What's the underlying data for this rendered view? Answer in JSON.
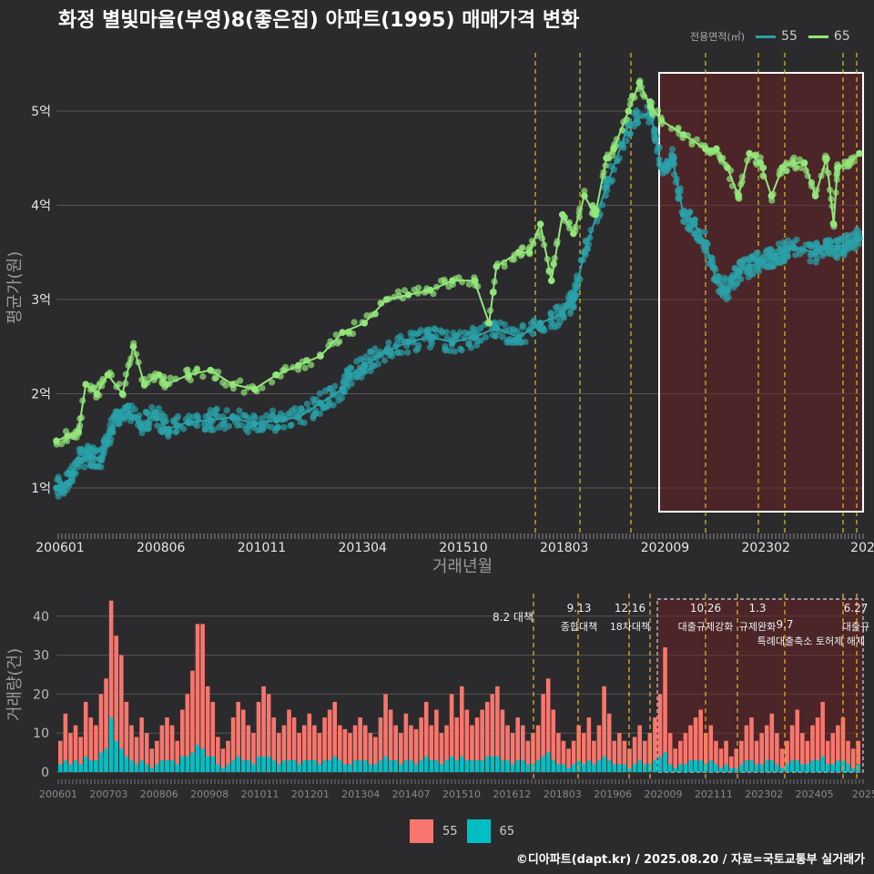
{
  "title": "화정 별빛마을(부영)8(좋은집) 아파트(1995) 매매가격 변화",
  "footer": "©디아파트(dapt.kr) / 2025.08.20 / 자료=국토교통부 실거래가",
  "colors": {
    "s55": "#2aa1a8",
    "s65": "#93e67a",
    "bar55": "#f8766d",
    "bar65": "#00bfc4",
    "policy": "#e0c020"
  },
  "chart_data": [
    {
      "type": "line",
      "title": "화정 별빛마을(부영)8(좋은집) 아파트(1995) 매매가격 변화",
      "xlabel": "거래년월",
      "ylabel": "평균가(원)",
      "legend_title": "전용면적(㎡)",
      "x_ticks": [
        "200601",
        "200806",
        "201011",
        "201304",
        "201510",
        "201803",
        "202009",
        "202302",
        "2025"
      ],
      "y_ticks": [
        "1억",
        "2억",
        "3억",
        "4억",
        "5억"
      ],
      "ylim": [
        0.6,
        5.6
      ],
      "x_unit": "months since 200601",
      "series": [
        {
          "name": "55",
          "x": [
            0,
            6,
            12,
            18,
            24,
            28,
            32,
            38,
            46,
            54,
            60,
            72,
            84,
            96,
            108,
            120,
            132,
            144,
            156,
            160,
            168,
            180,
            192,
            204,
            216,
            228,
            240,
            252,
            264,
            276,
            282,
            288,
            300,
            312,
            324,
            330,
            336,
            342,
            348,
            354,
            360,
            366,
            372,
            378,
            384,
            390,
            396,
            402,
            414,
            420,
            426,
            432,
            438
          ],
          "y": [
            1.0,
            1.05,
            1.3,
            1.35,
            1.3,
            1.5,
            1.75,
            1.85,
            1.65,
            1.8,
            1.62,
            1.7,
            1.72,
            1.75,
            1.68,
            1.72,
            1.75,
            1.9,
            2.05,
            2.2,
            2.3,
            2.45,
            2.55,
            2.6,
            2.55,
            2.6,
            2.7,
            2.6,
            2.75,
            2.85,
            3.0,
            3.5,
            4.2,
            4.85,
            5.0,
            4.4,
            4.5,
            3.9,
            3.8,
            3.6,
            3.2,
            3.1,
            3.3,
            3.35,
            3.4,
            3.45,
            3.5,
            3.55,
            3.5,
            3.6,
            3.55,
            3.6,
            3.65
          ]
        },
        {
          "name": "65",
          "x": [
            0,
            6,
            12,
            16,
            22,
            28,
            36,
            42,
            48,
            56,
            60,
            72,
            84,
            96,
            108,
            120,
            132,
            144,
            156,
            168,
            180,
            192,
            204,
            216,
            228,
            236,
            240,
            252,
            258,
            264,
            270,
            276,
            282,
            288,
            294,
            300,
            304,
            312,
            318,
            324,
            330,
            342,
            354,
            360,
            366,
            372,
            378,
            384,
            390,
            396,
            402,
            408,
            414,
            420,
            424,
            426,
            432,
            438
          ],
          "y": [
            1.5,
            1.55,
            1.6,
            2.1,
            2.0,
            2.2,
            2.0,
            2.5,
            2.1,
            2.2,
            2.1,
            2.2,
            2.25,
            2.1,
            2.05,
            2.2,
            2.3,
            2.4,
            2.65,
            2.75,
            3.0,
            3.05,
            3.1,
            3.2,
            3.2,
            2.75,
            3.35,
            3.5,
            3.5,
            3.8,
            3.2,
            3.9,
            3.7,
            4.1,
            3.9,
            4.5,
            4.6,
            5.0,
            5.3,
            5.05,
            4.9,
            4.75,
            4.6,
            4.6,
            4.4,
            4.1,
            4.55,
            4.45,
            4.1,
            4.4,
            4.45,
            4.45,
            4.1,
            4.5,
            3.8,
            4.4,
            4.45,
            4.55
          ]
        }
      ]
    },
    {
      "type": "bar",
      "title": "",
      "xlabel": "",
      "ylabel": "거래량(건)",
      "x_ticks": [
        "200601",
        "200703",
        "200806",
        "200908",
        "201011",
        "201201",
        "201304",
        "201407",
        "201510",
        "201612",
        "201803",
        "201906",
        "202009",
        "202111",
        "202302",
        "202405",
        "2025"
      ],
      "y_ticks": [
        0,
        10,
        20,
        30,
        40
      ],
      "ylim": [
        0,
        45
      ],
      "legend": [
        "55",
        "65"
      ],
      "series": [
        {
          "name": "55",
          "values": [
            8,
            15,
            10,
            12,
            9,
            18,
            14,
            12,
            20,
            24,
            44,
            35,
            30,
            18,
            12,
            9,
            14,
            10,
            6,
            8,
            12,
            14,
            12,
            8,
            16,
            20,
            26,
            38,
            38,
            22,
            18,
            9,
            6,
            8,
            14,
            18,
            16,
            12,
            10,
            18,
            22,
            20,
            14,
            10,
            12,
            16,
            14,
            10,
            12,
            15,
            12,
            10,
            14,
            16,
            18,
            12,
            11,
            10,
            12,
            14,
            12,
            10,
            9,
            14,
            20,
            16,
            12,
            10,
            15,
            12,
            11,
            14,
            18,
            12,
            16,
            10,
            12,
            20,
            14,
            22,
            16,
            12,
            14,
            16,
            18,
            20,
            22,
            16,
            12,
            10,
            14,
            12,
            8,
            10,
            12,
            20,
            24,
            16,
            10,
            8,
            6,
            8,
            12,
            10,
            14,
            8,
            12,
            22,
            15,
            8,
            10,
            8,
            6,
            9,
            12,
            8,
            10,
            14,
            20,
            32,
            10,
            6,
            8,
            10,
            12,
            14,
            16,
            10,
            12,
            8,
            6,
            8,
            4,
            6,
            8,
            12,
            14,
            8,
            10,
            12,
            15,
            10,
            6,
            8,
            12,
            16,
            10,
            8,
            12,
            14,
            18,
            8,
            10,
            12,
            14,
            8,
            6,
            8
          ]
        },
        {
          "name": "65",
          "values": [
            2,
            3,
            2,
            3,
            2,
            4,
            3,
            3,
            5,
            6,
            14,
            8,
            6,
            4,
            3,
            2,
            3,
            2,
            1,
            2,
            3,
            3,
            3,
            2,
            4,
            4,
            5,
            7,
            6,
            4,
            4,
            2,
            1,
            2,
            3,
            4,
            3,
            3,
            2,
            4,
            4,
            4,
            3,
            2,
            3,
            3,
            3,
            2,
            3,
            3,
            3,
            2,
            3,
            3,
            4,
            3,
            2,
            2,
            3,
            3,
            3,
            2,
            2,
            3,
            4,
            3,
            3,
            2,
            3,
            3,
            2,
            3,
            4,
            3,
            3,
            2,
            3,
            4,
            3,
            4,
            3,
            3,
            3,
            3,
            4,
            4,
            4,
            3,
            3,
            2,
            3,
            3,
            2,
            2,
            3,
            4,
            5,
            3,
            2,
            2,
            1,
            2,
            3,
            2,
            3,
            2,
            3,
            4,
            3,
            2,
            2,
            2,
            1,
            2,
            3,
            2,
            2,
            3,
            4,
            5,
            2,
            1,
            2,
            2,
            3,
            3,
            3,
            2,
            3,
            2,
            1,
            2,
            1,
            1,
            2,
            3,
            3,
            2,
            2,
            3,
            3,
            2,
            1,
            2,
            3,
            3,
            2,
            2,
            3,
            3,
            4,
            2,
            2,
            3,
            3,
            2,
            1,
            2
          ]
        }
      ],
      "policy_events": [
        {
          "label_top": "8.2 대책",
          "label_bottom": ""
        },
        {
          "label_top": "9.13",
          "label_bottom": "종합대책"
        },
        {
          "label_top": "12.16",
          "label_bottom": "18차대책"
        },
        {
          "label_top": "10.26",
          "label_bottom": "대출규제강화"
        },
        {
          "label_top": "1.3",
          "label_bottom": "규제완화"
        },
        {
          "label_top": "9.7",
          "label_bottom": "특례대출축소"
        },
        {
          "label_top": "",
          "label_bottom": "토허제 해제"
        },
        {
          "label_top": "6.27",
          "label_bottom": "대출규"
        }
      ]
    }
  ]
}
